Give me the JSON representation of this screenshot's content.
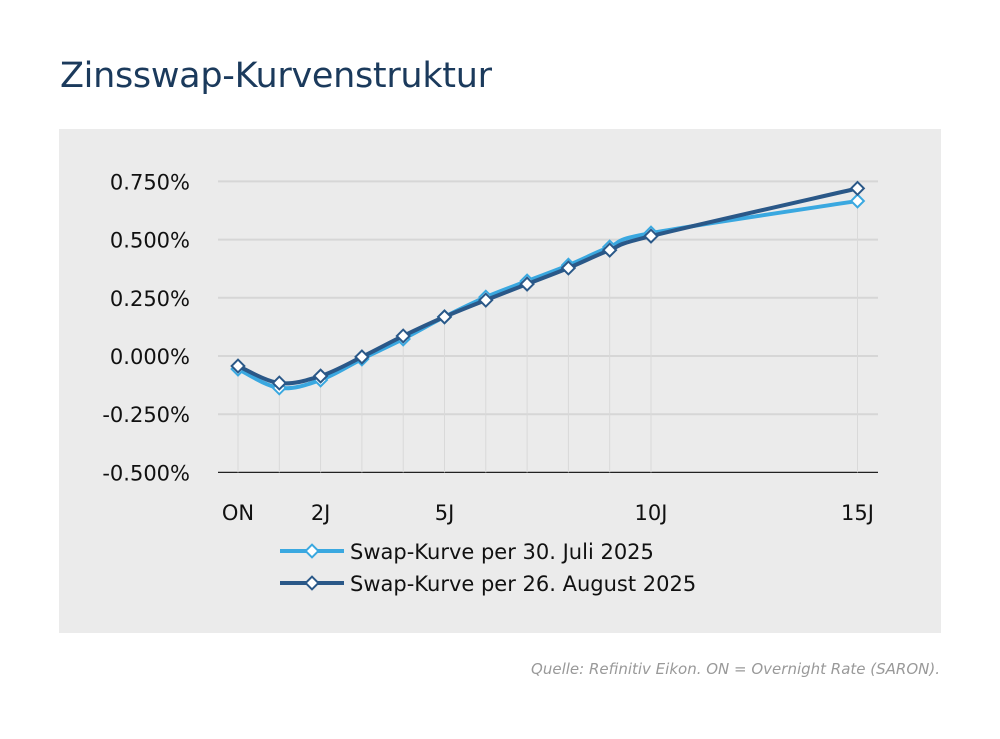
{
  "title": "Zinsswap-Kurvenstruktur",
  "source": "Quelle: Refinitiv Eikon. ON = Overnight Rate (SARON).",
  "chart_data": {
    "type": "line",
    "title": "",
    "xlabel": "",
    "ylabel": "",
    "x": [
      0,
      1,
      2,
      3,
      4,
      5,
      6,
      7,
      8,
      9,
      10,
      15
    ],
    "x_tick_labels": [
      {
        "x": 0,
        "label": "ON"
      },
      {
        "x": 2,
        "label": "2J"
      },
      {
        "x": 5,
        "label": "5J"
      },
      {
        "x": 10,
        "label": "10J"
      },
      {
        "x": 15,
        "label": "15J"
      }
    ],
    "ylim": [
      -0.5,
      0.75
    ],
    "y_ticks": [
      -0.5,
      -0.25,
      0,
      0.25,
      0.5,
      0.75
    ],
    "y_tick_labels": [
      "-0.500%",
      "-0.250%",
      "0.000%",
      "0.250%",
      "0.500%",
      "0.750%"
    ],
    "grid": true,
    "legend_position": "bottom",
    "series": [
      {
        "name": "Swap-Kurve per 30. Juli 2025",
        "color": "#3aa8e0",
        "values": [
          -0.056,
          -0.137,
          -0.103,
          -0.013,
          0.073,
          0.168,
          0.253,
          0.322,
          0.39,
          0.468,
          0.528,
          0.666
        ]
      },
      {
        "name": "Swap-Kurve per 26. August 2025",
        "color": "#2a5888",
        "values": [
          -0.043,
          -0.116,
          -0.086,
          -0.004,
          0.086,
          0.168,
          0.24,
          0.309,
          0.378,
          0.455,
          0.515,
          0.72
        ]
      }
    ]
  }
}
